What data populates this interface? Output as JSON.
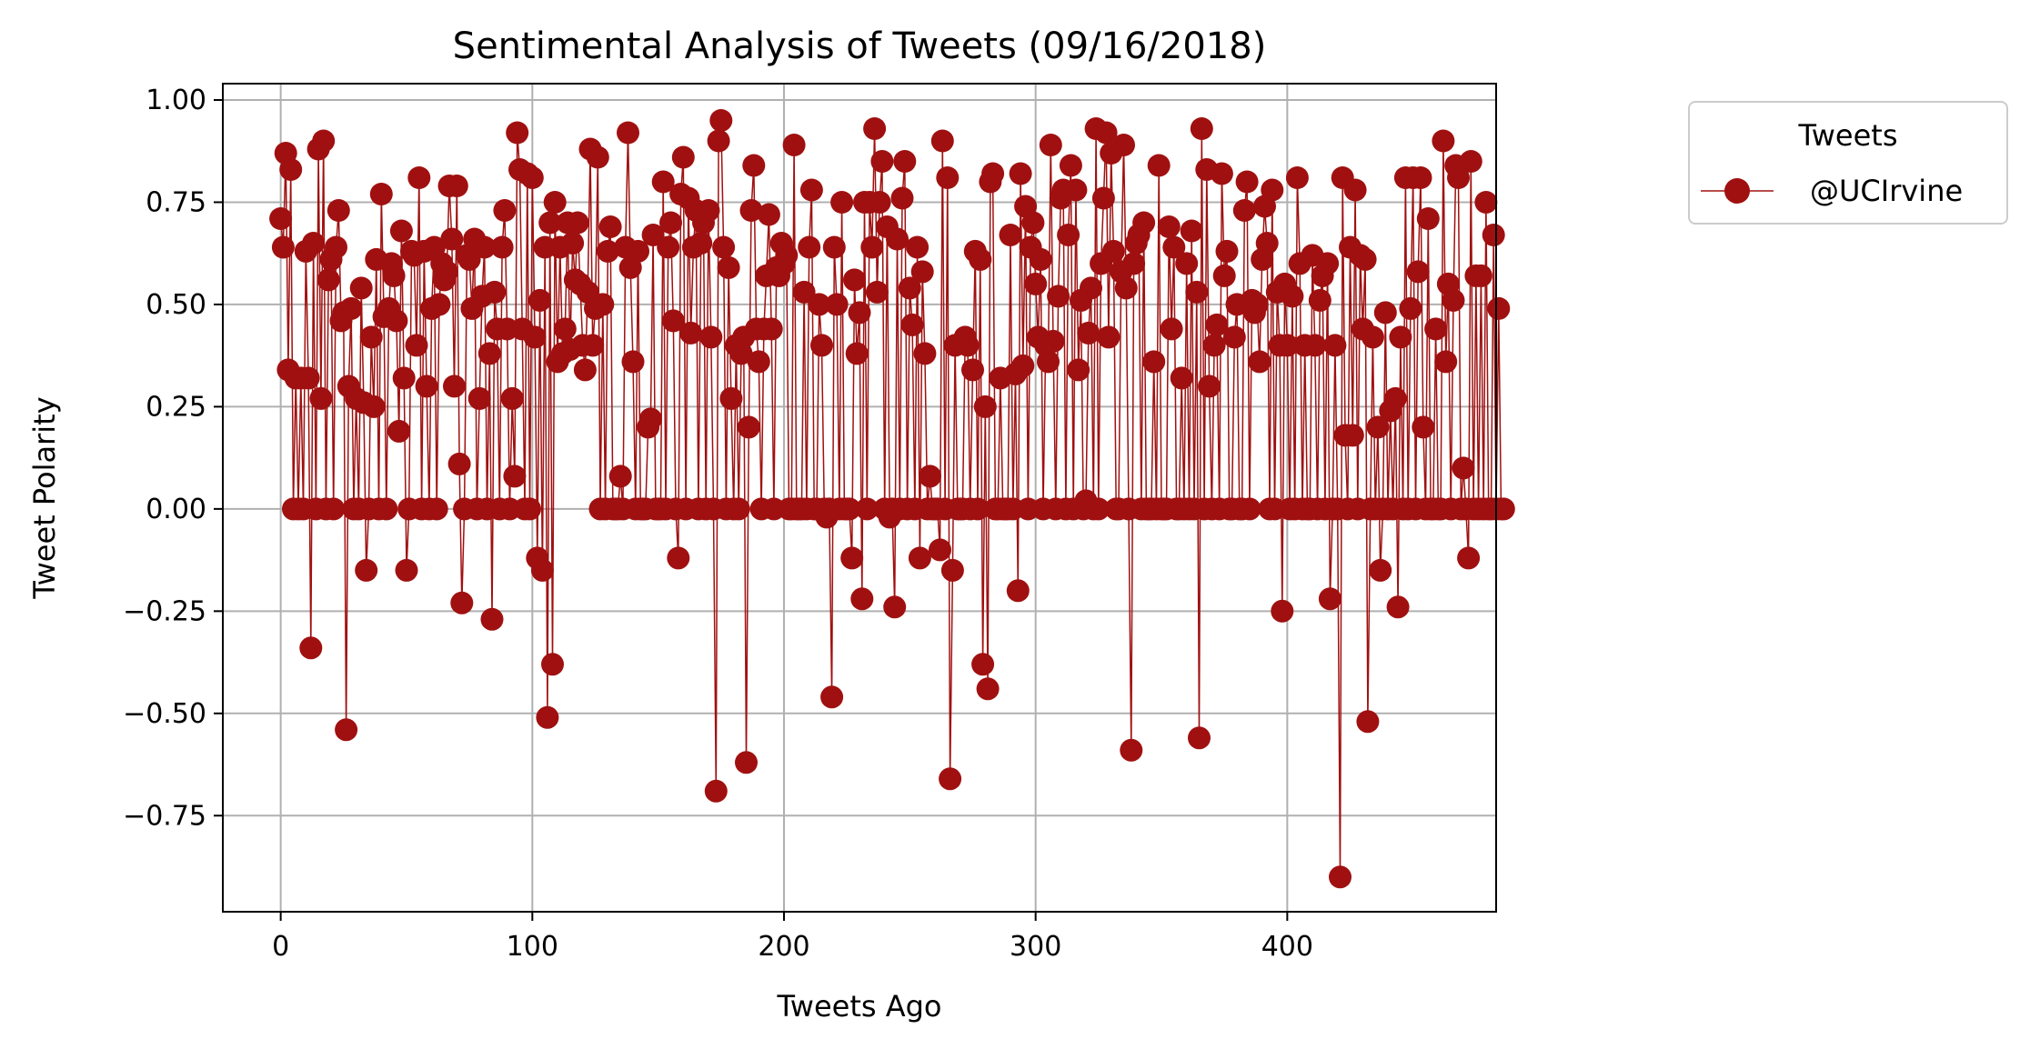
{
  "chart_data": {
    "type": "line",
    "title": "Sentimental Analysis of Tweets (09/16/2018)",
    "xlabel": "Tweets Ago",
    "ylabel": "Tweet Polarity",
    "xlim": [
      -23,
      483
    ],
    "ylim": [
      -0.985,
      1.04
    ],
    "x_ticks": [
      0,
      100,
      200,
      300,
      400
    ],
    "x_tick_labels": [
      "0",
      "100",
      "200",
      "300",
      "400"
    ],
    "y_ticks": [
      1.0,
      0.75,
      0.5,
      0.25,
      0.0,
      -0.25,
      -0.5,
      -0.75
    ],
    "y_tick_labels": [
      "1.00",
      "0.75",
      "0.50",
      "0.25",
      "0.00",
      "−0.25",
      "−0.50",
      "−0.75"
    ],
    "grid": true,
    "legend": {
      "title": "Tweets",
      "placement": "upper-right-outside"
    },
    "colors": {
      "series": "#a01010"
    },
    "series": [
      {
        "name": "@UCIrvine",
        "x_start": 0,
        "x_step": 1,
        "values": [
          0.71,
          0.64,
          0.87,
          0.34,
          0.83,
          0.0,
          0.32,
          0.0,
          0.32,
          0.0,
          0.63,
          0.32,
          -0.34,
          0.65,
          0.0,
          0.88,
          0.27,
          0.9,
          0.0,
          0.56,
          0.61,
          0.0,
          0.64,
          0.73,
          0.46,
          0.48,
          -0.54,
          0.3,
          0.49,
          0.0,
          0.27,
          0.0,
          0.54,
          0.26,
          -0.15,
          0.0,
          0.42,
          0.25,
          0.61,
          0.0,
          0.77,
          0.47,
          0.0,
          0.49,
          0.6,
          0.57,
          0.46,
          0.19,
          0.68,
          0.32,
          -0.15,
          0.0,
          0.63,
          0.62,
          0.4,
          0.81,
          0.0,
          0.63,
          0.3,
          0.0,
          0.49,
          0.64,
          0.0,
          0.5,
          0.6,
          0.56,
          0.58,
          0.79,
          0.66,
          0.3,
          0.79,
          0.11,
          -0.23,
          0.0,
          0.62,
          0.61,
          0.49,
          0.66,
          0.0,
          0.27,
          0.52,
          0.64,
          0.0,
          0.38,
          -0.27,
          0.53,
          0.44,
          0.0,
          0.64,
          0.73,
          0.44,
          0.0,
          0.27,
          0.08,
          0.92,
          0.83,
          0.44,
          0.0,
          0.82,
          0.0,
          0.81,
          0.42,
          -0.12,
          0.51,
          -0.15,
          0.64,
          -0.51,
          0.7,
          -0.38,
          0.75,
          0.36,
          0.64,
          0.38,
          0.44,
          0.7,
          0.39,
          0.65,
          0.56,
          0.7,
          0.55,
          0.4,
          0.34,
          0.53,
          0.88,
          0.4,
          0.49,
          0.86,
          0.0,
          0.5,
          0.0,
          0.63,
          0.69,
          0.0,
          0.0,
          0.0,
          0.08,
          0.0,
          0.64,
          0.92,
          0.59,
          0.36,
          0.0,
          0.63,
          0.0,
          0.0,
          0.0,
          0.2,
          0.22,
          0.67,
          0.0,
          0.0,
          0.0,
          0.8,
          0.0,
          0.64,
          0.7,
          0.46,
          0.0,
          -0.12,
          0.77,
          0.86,
          0.0,
          0.76,
          0.43,
          0.64,
          0.73,
          0.0,
          0.65,
          0.7,
          0.0,
          0.73,
          0.42,
          0.0,
          -0.69,
          0.9,
          0.95,
          0.64,
          0.0,
          0.59,
          0.27,
          0.0,
          0.4,
          0.0,
          0.38,
          0.42,
          -0.62,
          0.2,
          0.73,
          0.84,
          0.44,
          0.36,
          0.0,
          0.44,
          0.57,
          0.72,
          0.44,
          0.0,
          0.59,
          0.57,
          0.65,
          0.6,
          0.62,
          0.0,
          0.0,
          0.89,
          0.0,
          0.0,
          0.0,
          0.53,
          0.0,
          0.64,
          0.78,
          0.0,
          0.0,
          0.5,
          0.4,
          0.0,
          -0.02,
          0.0,
          -0.46,
          0.64,
          0.5,
          0.0,
          0.75,
          0.0,
          0.0,
          0.0,
          -0.12,
          0.56,
          0.38,
          0.48,
          -0.22,
          0.75,
          0.0,
          0.75,
          0.64,
          0.93,
          0.53,
          0.75,
          0.85,
          0.0,
          0.69,
          -0.02,
          0.0,
          -0.24,
          0.66,
          0.0,
          0.76,
          0.85,
          0.0,
          0.54,
          0.45,
          0.0,
          0.64,
          -0.12,
          0.58,
          0.38,
          0.0,
          0.08,
          0.0,
          0.0,
          0.0,
          -0.1,
          0.9,
          0.0,
          0.81,
          -0.66,
          -0.15,
          0.4,
          0.0,
          0.0,
          0.0,
          0.42,
          0.4,
          0.0,
          0.34,
          0.63,
          0.0,
          0.61,
          -0.38,
          0.25,
          -0.44,
          0.8,
          0.82,
          0.0,
          0.0,
          0.32,
          0.0,
          0.0,
          0.0,
          0.67,
          0.0,
          0.33,
          -0.2,
          0.82,
          0.35,
          0.74,
          0.0,
          0.64,
          0.7,
          0.55,
          0.42,
          0.61,
          0.0,
          0.4,
          0.36,
          0.89,
          0.41,
          0.0,
          0.52,
          0.76,
          0.78,
          0.0,
          0.67,
          0.84,
          0.0,
          0.78,
          0.34,
          0.51,
          0.0,
          0.02,
          0.43,
          0.54,
          0.0,
          0.93,
          0.0,
          0.6,
          0.76,
          0.92,
          0.42,
          0.87,
          0.63,
          0.0,
          0.0,
          0.58,
          0.89,
          0.54,
          0.0,
          -0.59,
          0.6,
          0.65,
          0.67,
          0.0,
          0.7,
          0.0,
          0.0,
          0.0,
          0.36,
          0.0,
          0.84,
          0.0,
          0.0,
          0.0,
          0.69,
          0.44,
          0.64,
          0.0,
          0.0,
          0.32,
          0.0,
          0.6,
          0.0,
          0.68,
          0.0,
          0.53,
          -0.56,
          0.93,
          0.0,
          0.83,
          0.3,
          0.0,
          0.4,
          0.45,
          0.0,
          0.82,
          0.57,
          0.63,
          0.0,
          0.0,
          0.42,
          0.5,
          0.0,
          0.0,
          0.73,
          0.8,
          0.0,
          0.51,
          0.48,
          0.5,
          0.36,
          0.61,
          0.74,
          0.65,
          0.0,
          0.78,
          0.0,
          0.53,
          0.4,
          -0.25,
          0.55,
          0.4,
          0.0,
          0.52,
          0.0,
          0.81,
          0.6,
          0.0,
          0.4,
          0.0,
          0.0,
          0.62,
          0.4,
          0.0,
          0.51,
          0.57,
          0.0,
          0.6,
          -0.22,
          0.0,
          0.4,
          0.0,
          -0.9,
          0.81,
          0.18,
          0.0,
          0.64,
          0.18,
          0.78,
          0.0,
          0.62,
          0.44,
          0.61,
          -0.52,
          0.0,
          0.42,
          0.0,
          0.2,
          -0.15,
          0.0,
          0.48,
          0.0,
          0.24,
          0.0,
          0.27,
          -0.24,
          0.42,
          0.0,
          0.81,
          0.0,
          0.49,
          0.81,
          0.0,
          0.58,
          0.81,
          0.2,
          0.0,
          0.71,
          0.0,
          0.0,
          0.44,
          0.0,
          0.0,
          0.9,
          0.36,
          0.55,
          0.0,
          0.51,
          0.84,
          0.81,
          0.0,
          0.1,
          0.0,
          -0.12,
          0.85,
          0.0,
          0.57,
          0.0,
          0.57,
          0.0,
          0.75,
          0.0,
          0.0,
          0.67,
          0.0,
          0.49,
          0.0,
          0.0
        ]
      }
    ]
  }
}
